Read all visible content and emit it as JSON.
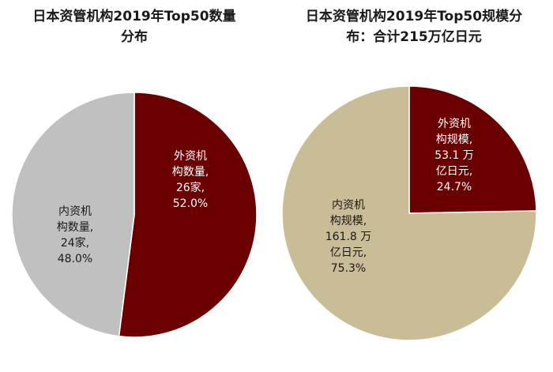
{
  "chart_data": [
    {
      "type": "pie",
      "title_lines": [
        "日本资管机构2019年Top50数量",
        "分布"
      ],
      "slices": [
        {
          "label_lines": [
            "外资机",
            "构数量,",
            "26家,",
            "52.0%"
          ],
          "value": 52.0,
          "color": "#6b0000",
          "text_color": "#ffffff"
        },
        {
          "label_lines": [
            "内资机",
            "构数量,",
            "24家,",
            "48.0%"
          ],
          "value": 48.0,
          "color": "#c0c0c0",
          "text_color": "#1a1a1a"
        }
      ],
      "start_angle_deg": 0,
      "direction": "clockwise"
    },
    {
      "type": "pie",
      "title_lines": [
        "日本资管机构2019年Top50规模分",
        "布：合计215万亿日元"
      ],
      "slices": [
        {
          "label_lines": [
            "外资机",
            "构规模,",
            "53.1 万",
            "亿日元,",
            "24.7%"
          ],
          "value": 24.7,
          "color": "#6b0000",
          "text_color": "#ffffff"
        },
        {
          "label_lines": [
            "内资机",
            "构规模,",
            "161.8 万",
            "亿日元,",
            "75.3%"
          ],
          "value": 75.3,
          "color": "#c8bd96",
          "text_color": "#1a1a1a"
        }
      ],
      "start_angle_deg": 0,
      "direction": "clockwise"
    }
  ]
}
